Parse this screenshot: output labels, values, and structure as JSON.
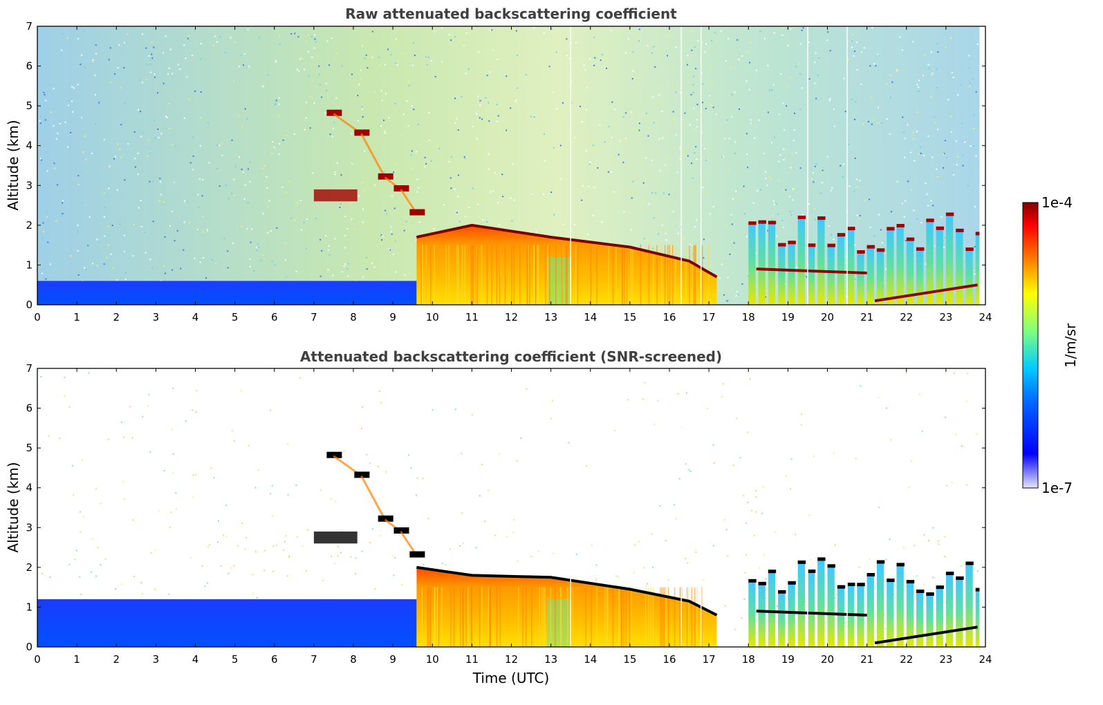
{
  "chart_data": [
    {
      "type": "heatmap",
      "title": "Raw attenuated backscattering coefficient",
      "ylabel": "Altitude (km)",
      "xlabel": "",
      "xlim": [
        0,
        24
      ],
      "ylim": [
        0,
        7
      ],
      "xticks": [
        0,
        1,
        2,
        3,
        4,
        5,
        6,
        7,
        8,
        9,
        10,
        11,
        12,
        13,
        14,
        15,
        16,
        17,
        18,
        19,
        20,
        21,
        22,
        23,
        24
      ],
      "yticks": [
        0,
        1,
        2,
        3,
        4,
        5,
        6,
        7
      ],
      "color_scale": "log",
      "screened": false,
      "features": [
        {
          "name": "near-surface layer",
          "x_range": [
            0,
            9.6
          ],
          "y_range": [
            0,
            0.6
          ],
          "level": "low"
        },
        {
          "name": "boundary layer",
          "x_range": [
            9.6,
            17.2
          ],
          "y_range": [
            0,
            1.8
          ],
          "level": "high"
        },
        {
          "name": "layer top",
          "points": [
            [
              9.6,
              1.7
            ],
            [
              11,
              2.0
            ],
            [
              13,
              1.7
            ],
            [
              15,
              1.45
            ],
            [
              16.5,
              1.1
            ],
            [
              17.2,
              0.7
            ]
          ]
        },
        {
          "name": "elevated aerosol layer",
          "points": [
            [
              7.5,
              4.8
            ],
            [
              8.2,
              4.3
            ],
            [
              8.8,
              3.2
            ],
            [
              9.2,
              2.9
            ],
            [
              9.6,
              2.3
            ]
          ]
        },
        {
          "name": "cloud segments",
          "x_range": [
            18,
            23.8
          ],
          "y_range": [
            0,
            2.3
          ]
        }
      ]
    },
    {
      "type": "heatmap",
      "title": "Attenuated backscattering coefficient (SNR-screened)",
      "ylabel": "Altitude (km)",
      "xlabel": "Time (UTC)",
      "xlim": [
        0,
        24
      ],
      "ylim": [
        0,
        7
      ],
      "xticks": [
        0,
        1,
        2,
        3,
        4,
        5,
        6,
        7,
        8,
        9,
        10,
        11,
        12,
        13,
        14,
        15,
        16,
        17,
        18,
        19,
        20,
        21,
        22,
        23,
        24
      ],
      "yticks": [
        0,
        1,
        2,
        3,
        4,
        5,
        6,
        7
      ],
      "color_scale": "log",
      "screened": true,
      "features": [
        {
          "name": "near-surface layer",
          "x_range": [
            0,
            9.6
          ],
          "y_range": [
            0,
            1.2
          ],
          "level": "low"
        },
        {
          "name": "boundary layer",
          "x_range": [
            9.6,
            17.2
          ],
          "y_range": [
            0,
            1.8
          ],
          "level": "high"
        },
        {
          "name": "layer top",
          "points": [
            [
              9.6,
              2.0
            ],
            [
              11,
              1.8
            ],
            [
              13,
              1.75
            ],
            [
              15,
              1.45
            ],
            [
              16.5,
              1.15
            ],
            [
              17.2,
              0.8
            ]
          ]
        },
        {
          "name": "elevated aerosol layer",
          "points": [
            [
              7.5,
              4.8
            ],
            [
              8.2,
              4.3
            ],
            [
              8.8,
              3.2
            ],
            [
              9.2,
              2.9
            ],
            [
              9.6,
              2.3
            ]
          ]
        },
        {
          "name": "cloud segments",
          "x_range": [
            18,
            23.8
          ],
          "y_range": [
            0,
            2.3
          ]
        }
      ]
    }
  ],
  "colorbar": {
    "max_label": "1e-4",
    "min_label": "1e-7",
    "unit_label": "1/m/sr",
    "colormap": "jet",
    "colors": [
      "#e6e6fa",
      "#0000ff",
      "#00ccff",
      "#7fff7f",
      "#ffff00",
      "#ff7f00",
      "#ff0000",
      "#800000"
    ]
  }
}
